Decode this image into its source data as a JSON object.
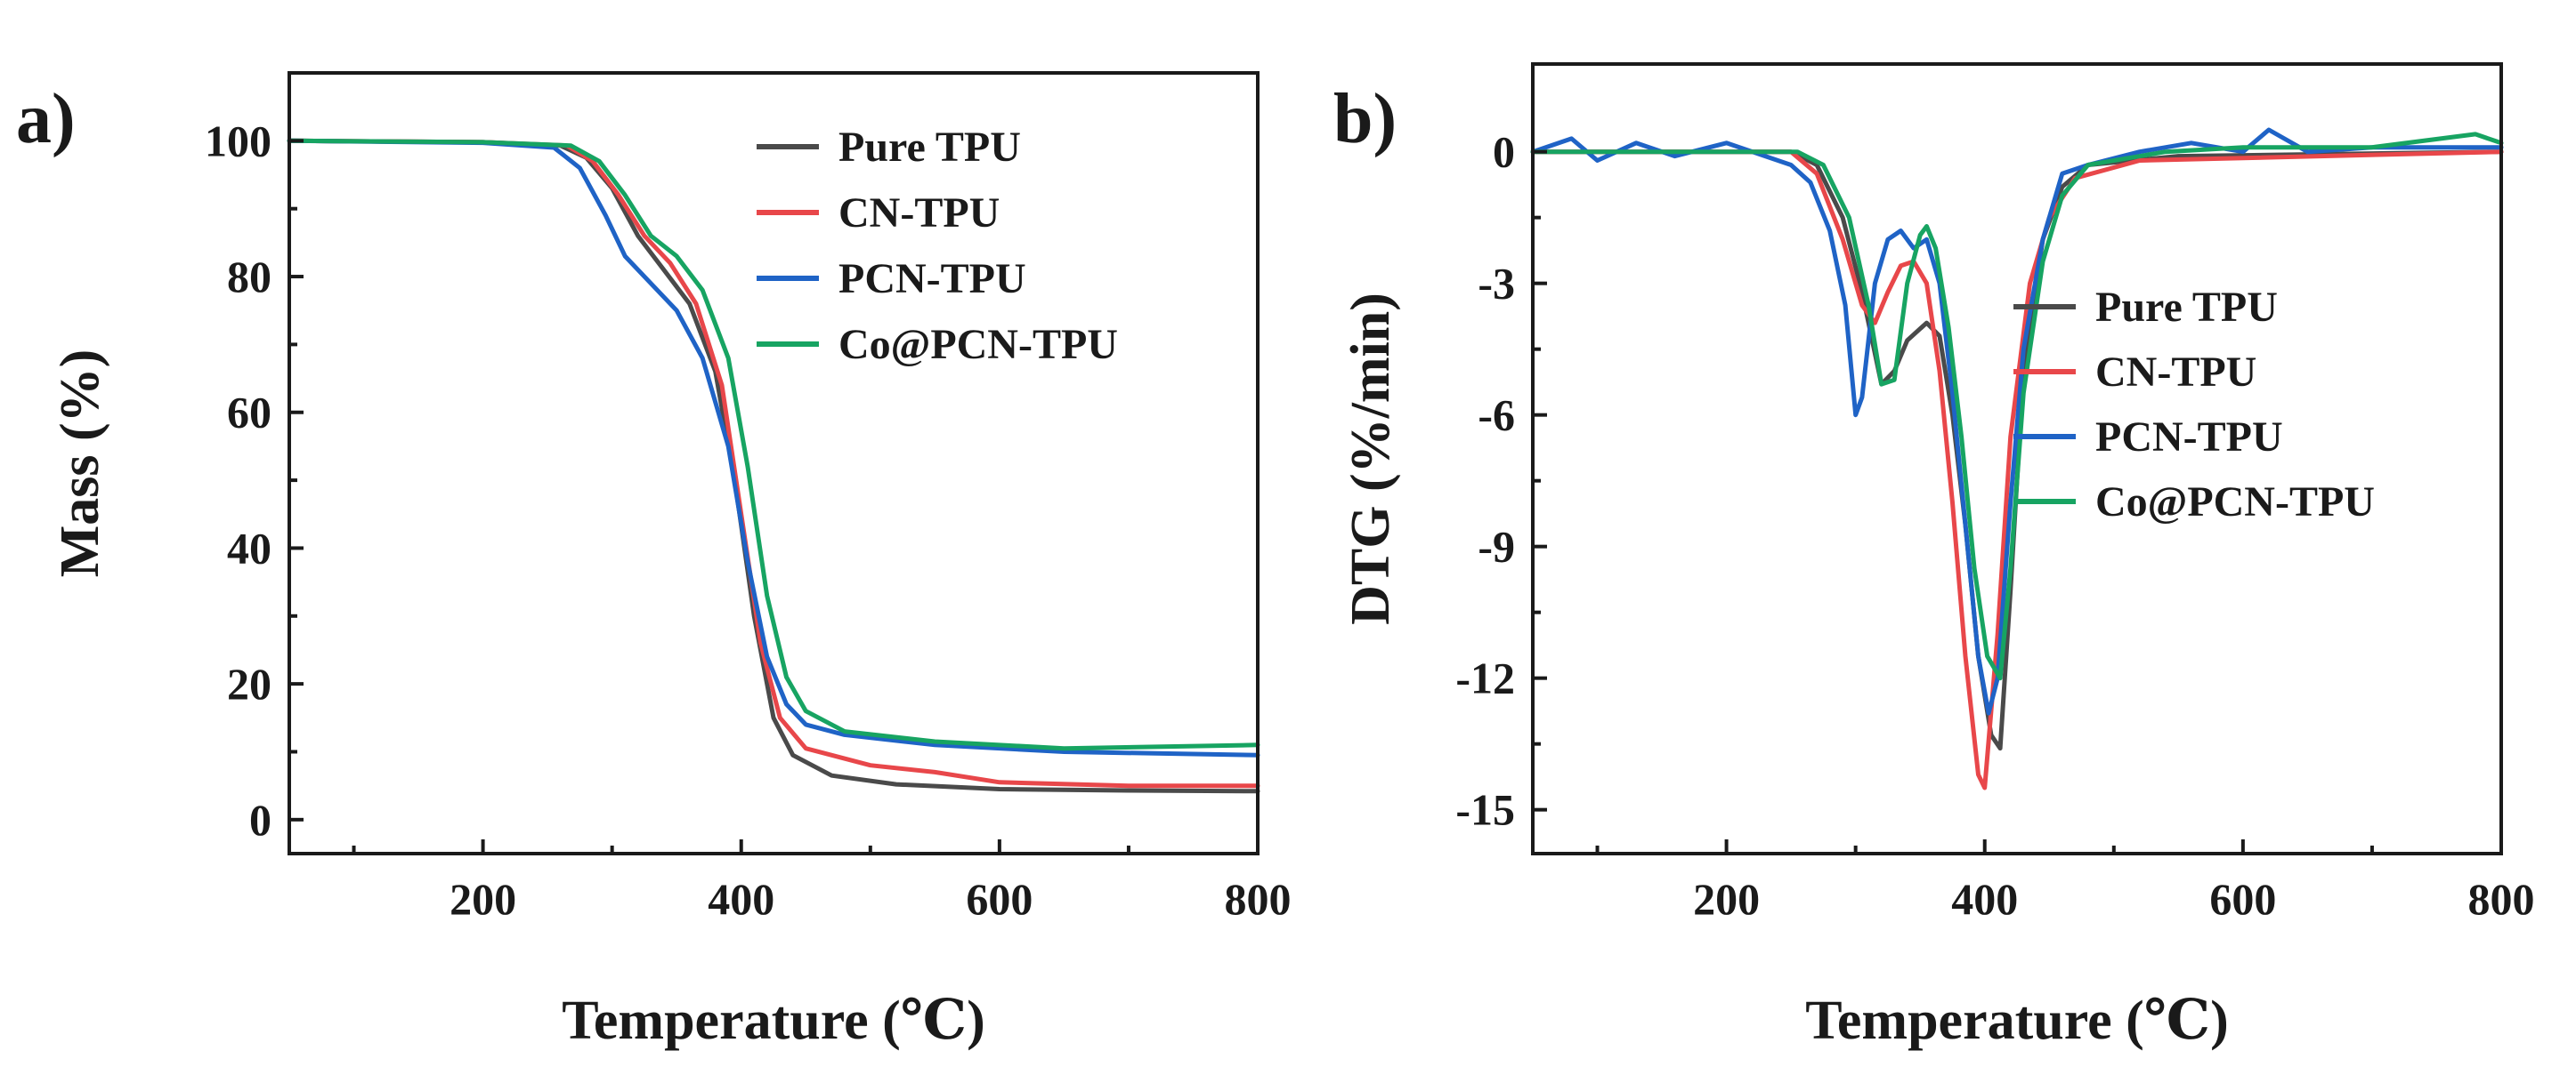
{
  "chart_data": [
    {
      "type": "line",
      "panel_label": "a)",
      "title": "",
      "xlabel": "Temperature (℃)",
      "ylabel": "Mass (%)",
      "xlim": [
        50,
        800
      ],
      "ylim": [
        -5,
        110
      ],
      "xticks": [
        200,
        400,
        600,
        800
      ],
      "yticks": [
        0,
        20,
        40,
        60,
        80,
        100
      ],
      "legend_position": "top-right",
      "grid": false,
      "series": [
        {
          "name": "Pure TPU",
          "color": "#4a4a4a",
          "points": [
            [
              50,
              100
            ],
            [
              200,
              99.8
            ],
            [
              260,
              99.3
            ],
            [
              280,
              97.5
            ],
            [
              300,
              93
            ],
            [
              320,
              86
            ],
            [
              340,
              81
            ],
            [
              360,
              76
            ],
            [
              380,
              66
            ],
            [
              395,
              50
            ],
            [
              410,
              30
            ],
            [
              425,
              15
            ],
            [
              440,
              9.5
            ],
            [
              470,
              6.5
            ],
            [
              520,
              5.2
            ],
            [
              600,
              4.5
            ],
            [
              700,
              4.3
            ],
            [
              800,
              4.2
            ]
          ]
        },
        {
          "name": "CN-TPU",
          "color": "#e8474a",
          "points": [
            [
              50,
              100
            ],
            [
              200,
              99.8
            ],
            [
              265,
              99.3
            ],
            [
              285,
              97
            ],
            [
              305,
              92
            ],
            [
              325,
              86
            ],
            [
              345,
              82
            ],
            [
              365,
              76
            ],
            [
              385,
              64
            ],
            [
              400,
              45
            ],
            [
              415,
              26
            ],
            [
              430,
              15
            ],
            [
              450,
              10.5
            ],
            [
              500,
              8
            ],
            [
              550,
              7
            ],
            [
              600,
              5.5
            ],
            [
              700,
              5
            ],
            [
              800,
              5
            ]
          ]
        },
        {
          "name": "PCN-TPU",
          "color": "#1f63c6",
          "points": [
            [
              50,
              100
            ],
            [
              200,
              99.7
            ],
            [
              255,
              99
            ],
            [
              275,
              96
            ],
            [
              295,
              89
            ],
            [
              310,
              83
            ],
            [
              330,
              79
            ],
            [
              350,
              75
            ],
            [
              370,
              68
            ],
            [
              390,
              55
            ],
            [
              405,
              38
            ],
            [
              420,
              24
            ],
            [
              435,
              17
            ],
            [
              450,
              14
            ],
            [
              480,
              12.5
            ],
            [
              550,
              11
            ],
            [
              650,
              10
            ],
            [
              800,
              9.5
            ]
          ]
        },
        {
          "name": "Co@PCN-TPU",
          "color": "#17a462",
          "points": [
            [
              50,
              100
            ],
            [
              200,
              99.8
            ],
            [
              268,
              99.3
            ],
            [
              290,
              97
            ],
            [
              310,
              92
            ],
            [
              330,
              86
            ],
            [
              350,
              83
            ],
            [
              370,
              78
            ],
            [
              390,
              68
            ],
            [
              405,
              52
            ],
            [
              420,
              33
            ],
            [
              435,
              21
            ],
            [
              450,
              16
            ],
            [
              480,
              13
            ],
            [
              550,
              11.5
            ],
            [
              650,
              10.5
            ],
            [
              800,
              11
            ]
          ]
        }
      ]
    },
    {
      "type": "line",
      "panel_label": "b)",
      "title": "",
      "xlabel": "Temperature (℃)",
      "ylabel": "DTG (%/min)",
      "xlim": [
        50,
        800
      ],
      "ylim": [
        -16,
        2
      ],
      "xticks": [
        200,
        400,
        600,
        800
      ],
      "yticks": [
        0,
        -3,
        -6,
        -9,
        -12,
        -15
      ],
      "legend_position": "center-right",
      "grid": false,
      "series": [
        {
          "name": "Pure TPU",
          "color": "#4a4a4a",
          "points": [
            [
              50,
              0
            ],
            [
              250,
              0
            ],
            [
              270,
              -0.3
            ],
            [
              290,
              -1.5
            ],
            [
              305,
              -3.2
            ],
            [
              320,
              -5.3
            ],
            [
              330,
              -5
            ],
            [
              340,
              -4.3
            ],
            [
              355,
              -3.9
            ],
            [
              365,
              -4.2
            ],
            [
              375,
              -6
            ],
            [
              385,
              -8.5
            ],
            [
              395,
              -11.5
            ],
            [
              405,
              -13.3
            ],
            [
              412,
              -13.6
            ],
            [
              420,
              -10
            ],
            [
              430,
              -5
            ],
            [
              445,
              -2
            ],
            [
              460,
              -0.8
            ],
            [
              480,
              -0.3
            ],
            [
              550,
              -0.1
            ],
            [
              800,
              0
            ]
          ]
        },
        {
          "name": "CN-TPU",
          "color": "#e8474a",
          "points": [
            [
              50,
              0
            ],
            [
              250,
              0
            ],
            [
              270,
              -0.5
            ],
            [
              290,
              -2
            ],
            [
              305,
              -3.5
            ],
            [
              315,
              -3.9
            ],
            [
              325,
              -3.2
            ],
            [
              335,
              -2.6
            ],
            [
              345,
              -2.5
            ],
            [
              355,
              -3
            ],
            [
              365,
              -5
            ],
            [
              375,
              -8
            ],
            [
              385,
              -11.5
            ],
            [
              395,
              -14.2
            ],
            [
              400,
              -14.5
            ],
            [
              410,
              -11
            ],
            [
              420,
              -6.5
            ],
            [
              435,
              -3
            ],
            [
              450,
              -1.5
            ],
            [
              470,
              -0.6
            ],
            [
              520,
              -0.2
            ],
            [
              800,
              0
            ]
          ]
        },
        {
          "name": "PCN-TPU",
          "color": "#1f63c6",
          "points": [
            [
              50,
              0
            ],
            [
              80,
              0.3
            ],
            [
              100,
              -0.2
            ],
            [
              130,
              0.2
            ],
            [
              160,
              -0.1
            ],
            [
              200,
              0.2
            ],
            [
              230,
              -0.1
            ],
            [
              250,
              -0.3
            ],
            [
              265,
              -0.7
            ],
            [
              280,
              -1.8
            ],
            [
              292,
              -3.5
            ],
            [
              300,
              -6
            ],
            [
              305,
              -5.6
            ],
            [
              315,
              -3
            ],
            [
              325,
              -2
            ],
            [
              335,
              -1.8
            ],
            [
              345,
              -2.2
            ],
            [
              355,
              -2
            ],
            [
              365,
              -3
            ],
            [
              375,
              -5.5
            ],
            [
              385,
              -8.5
            ],
            [
              395,
              -11.5
            ],
            [
              403,
              -12.8
            ],
            [
              410,
              -12
            ],
            [
              420,
              -8
            ],
            [
              430,
              -4.5
            ],
            [
              445,
              -2
            ],
            [
              460,
              -0.5
            ],
            [
              480,
              -0.3
            ],
            [
              520,
              0
            ],
            [
              560,
              0.2
            ],
            [
              600,
              0
            ],
            [
              620,
              0.5
            ],
            [
              650,
              0
            ],
            [
              700,
              0.1
            ],
            [
              800,
              0.1
            ]
          ]
        },
        {
          "name": "Co@PCN-TPU",
          "color": "#17a462",
          "points": [
            [
              50,
              0
            ],
            [
              255,
              0
            ],
            [
              275,
              -0.3
            ],
            [
              295,
              -1.5
            ],
            [
              310,
              -3.5
            ],
            [
              320,
              -5.3
            ],
            [
              330,
              -5.2
            ],
            [
              340,
              -3
            ],
            [
              350,
              -1.9
            ],
            [
              355,
              -1.7
            ],
            [
              362,
              -2.2
            ],
            [
              372,
              -4
            ],
            [
              382,
              -6.5
            ],
            [
              392,
              -9.5
            ],
            [
              402,
              -11.5
            ],
            [
              412,
              -12
            ],
            [
              420,
              -9.5
            ],
            [
              430,
              -5.5
            ],
            [
              445,
              -2.5
            ],
            [
              460,
              -1
            ],
            [
              480,
              -0.3
            ],
            [
              540,
              0
            ],
            [
              600,
              0.1
            ],
            [
              700,
              0.1
            ],
            [
              780,
              0.4
            ],
            [
              800,
              0.2
            ]
          ]
        }
      ]
    }
  ]
}
